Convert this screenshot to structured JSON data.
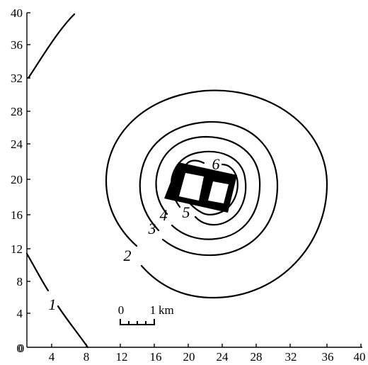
{
  "axes": {
    "x_ticks": [
      "0",
      "4",
      "8",
      "12",
      "16",
      "20",
      "24",
      "28",
      "32",
      "36",
      "40"
    ],
    "y_ticks": [
      "0",
      "4",
      "8",
      "12",
      "16",
      "20",
      "24",
      "28",
      "32",
      "36",
      "40"
    ]
  },
  "contours": [
    {
      "level": 1,
      "label": "1"
    },
    {
      "level": 2,
      "label": "2"
    },
    {
      "level": 3,
      "label": "3"
    },
    {
      "level": 4,
      "label": "4"
    },
    {
      "level": 5,
      "label": "5"
    },
    {
      "level": 6,
      "label": "6"
    }
  ],
  "scale_bar": {
    "zero_label": "0",
    "end_label": "1",
    "unit_label": "km"
  },
  "colors": {
    "line": "#000000",
    "background": "#ffffff"
  }
}
